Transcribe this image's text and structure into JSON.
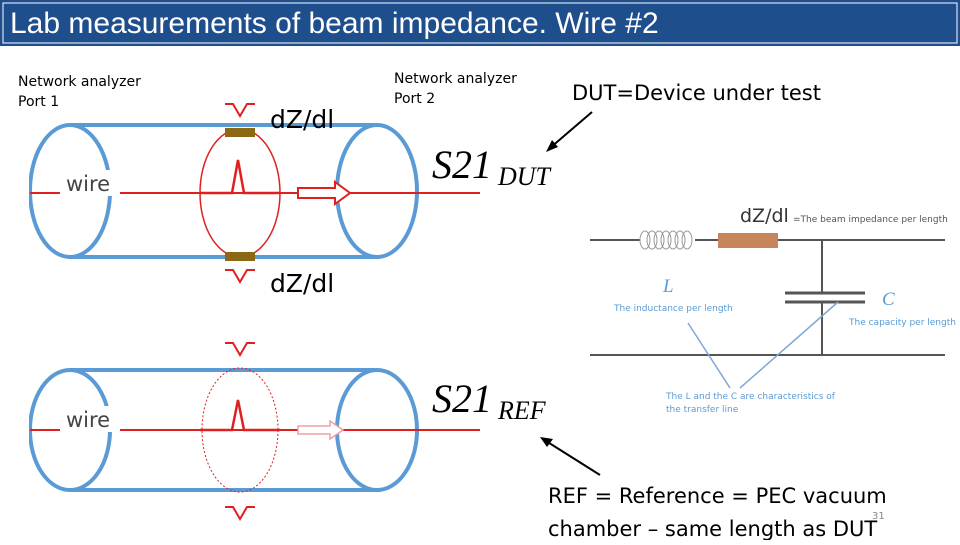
{
  "header": {
    "title": "Lab measurements of beam impedance. Wire #2"
  },
  "labels": {
    "port1": [
      "Network analyzer",
      "Port 1"
    ],
    "port2": [
      "Network analyzer",
      "Port 2"
    ],
    "dut_note": "DUT=Device under test",
    "ref_note": [
      "REF = Reference = PEC vacuum",
      "chamber – same length as DUT"
    ],
    "page_number": "31"
  },
  "dut_setup": {
    "wire_label": "wire",
    "impedance_top": "dZ/dl",
    "impedance_bottom": "dZ/dl",
    "s_param": "S21",
    "subscript": "DUT"
  },
  "ref_setup": {
    "wire_label": "wire",
    "s_param": "S21",
    "subscript": "REF"
  },
  "circuit": {
    "dzdl": "dZ/dl",
    "dzdl_desc": "=The beam impedance per length",
    "L": "L",
    "L_desc": "The inductance per length",
    "C": "C",
    "C_desc": "The capacity per length",
    "lc_note": [
      "The L and the C are characteristics of",
      "the transfer line"
    ]
  }
}
